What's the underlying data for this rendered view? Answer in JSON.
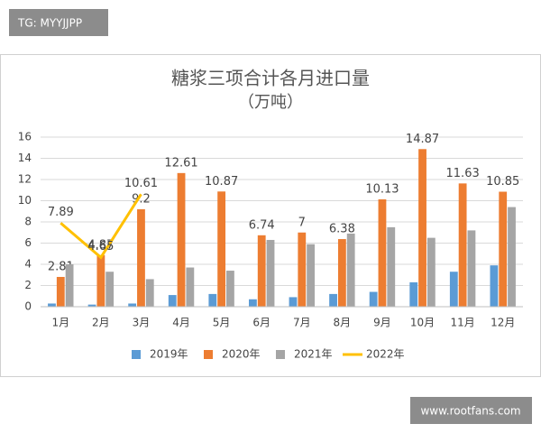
{
  "watermarks": {
    "top_left": "TG: MYYJJPP",
    "bottom_right": "www.rootfans.com"
  },
  "chart_data": {
    "type": "bar",
    "title": "糖浆三项合计各月进口量",
    "subtitle": "（万吨）",
    "categories": [
      "1月",
      "2月",
      "3月",
      "4月",
      "5月",
      "6月",
      "7月",
      "8月",
      "9月",
      "10月",
      "11月",
      "12月"
    ],
    "series": [
      {
        "name": "2019年",
        "color": "#5b9bd5",
        "values": [
          0.3,
          0.2,
          0.3,
          1.1,
          1.2,
          0.7,
          0.9,
          1.2,
          1.4,
          2.3,
          3.3,
          3.9
        ]
      },
      {
        "name": "2020年",
        "color": "#ed7d31",
        "labels": true,
        "values": [
          2.81,
          4.87,
          9.2,
          12.61,
          10.87,
          6.74,
          7,
          6.38,
          10.13,
          14.87,
          11.63,
          10.85
        ]
      },
      {
        "name": "2021年",
        "color": "#a5a5a5",
        "values": [
          4.0,
          3.3,
          2.6,
          3.7,
          3.4,
          6.3,
          5.9,
          6.9,
          7.5,
          6.5,
          7.2,
          9.4
        ]
      },
      {
        "name": "2022年",
        "color": "#ffc000",
        "type": "line",
        "labels": true,
        "values": [
          7.89,
          4.65,
          10.61,
          null,
          null,
          null,
          null,
          null,
          null,
          null,
          null,
          null
        ]
      }
    ],
    "ylim": [
      0,
      16
    ],
    "yticks": [
      0,
      2,
      4,
      6,
      8,
      10,
      12,
      14,
      16
    ],
    "grid": true,
    "legend": "bottom"
  }
}
